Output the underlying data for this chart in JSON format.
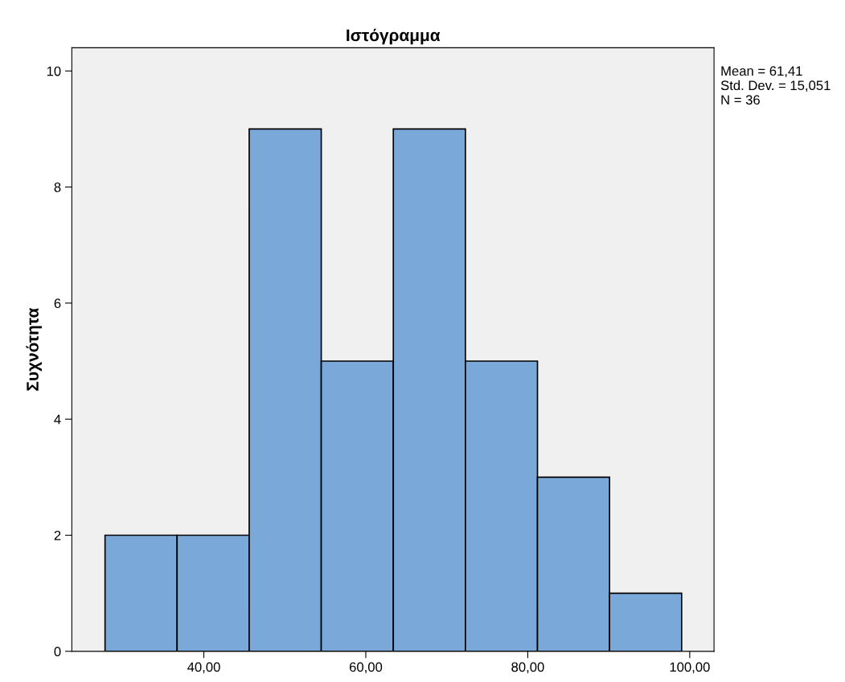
{
  "chart_data": {
    "type": "histogram",
    "title": "Ιστόγραμμα",
    "ylabel": "Συχνότητα",
    "bins": [
      27.8,
      36.7,
      45.6,
      54.5,
      63.4,
      72.3,
      81.2,
      90.1,
      99.0
    ],
    "values": [
      2,
      2,
      9,
      5,
      9,
      5,
      3,
      1
    ],
    "color": "#7aa8d9",
    "xlim": [
      23.7,
      103.0
    ],
    "xticks": [
      {
        "value": 40,
        "label": "40,00"
      },
      {
        "value": 60,
        "label": "60,00"
      },
      {
        "value": 80,
        "label": "80,00"
      },
      {
        "value": 100,
        "label": "100,00"
      }
    ],
    "ylim": [
      0,
      10.4
    ],
    "yticks": [
      0,
      2,
      4,
      6,
      8,
      10
    ],
    "annotations": [
      "Mean = 61,41\nStd. Dev. = 15,051\nN = 36"
    ],
    "grid": false
  }
}
